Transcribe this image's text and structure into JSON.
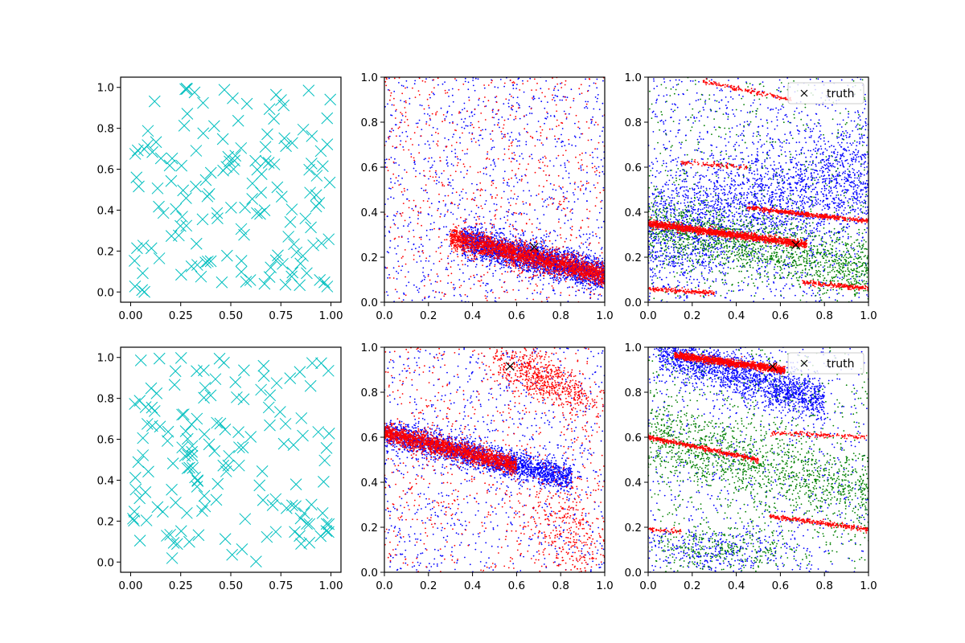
{
  "figure": {
    "layout": "2 rows x 3 columns of scatter panels",
    "background": "#ffffff"
  },
  "chart_data": [
    {
      "panel": "row1-col1",
      "type": "scatter",
      "xlim": [
        -0.05,
        1.05
      ],
      "ylim": [
        -0.05,
        1.05
      ],
      "xticks": [
        "0.00",
        "0.25",
        "0.50",
        "0.75",
        "1.00"
      ],
      "yticks": [
        "0.0",
        "0.2",
        "0.4",
        "0.6",
        "0.8",
        "1.0"
      ],
      "grid": false,
      "series": [
        {
          "color": "#00bfbf",
          "marker": "x",
          "count": 150,
          "distribution": "uniform over [0,1]x[0,1]",
          "seed": 11
        }
      ]
    },
    {
      "panel": "row1-col2",
      "type": "scatter",
      "xlim": [
        0,
        1
      ],
      "ylim": [
        0,
        1
      ],
      "xticks": [
        "0.0",
        "0.2",
        "0.4",
        "0.6",
        "0.8",
        "1.0"
      ],
      "yticks": [
        "0.0",
        "0.2",
        "0.4",
        "0.6",
        "0.8",
        "1.0"
      ],
      "grid": false,
      "series": [
        {
          "color": "#0000ff",
          "marker": ".",
          "count": 2600,
          "band": {
            "y0": 0.36,
            "slope": -0.24,
            "spread": 0.035,
            "xmin": 0.35,
            "xmax": 1.0
          },
          "background_count": 1000,
          "seed": 21
        },
        {
          "color": "#ff0000",
          "marker": ".",
          "count": 2200,
          "band": {
            "y0": 0.36,
            "slope": -0.24,
            "spread": 0.025,
            "xmin": 0.3,
            "xmax": 1.0
          },
          "background_count": 700,
          "seed": 22
        }
      ],
      "truth": {
        "x": 0.68,
        "y": 0.245,
        "color": "#000000",
        "marker": "x"
      }
    },
    {
      "panel": "row1-col3",
      "type": "scatter",
      "xlim": [
        0,
        1
      ],
      "ylim": [
        0,
        1
      ],
      "xticks": [
        "0.0",
        "0.2",
        "0.4",
        "0.6",
        "0.8",
        "1.0"
      ],
      "yticks": [
        "0.0",
        "0.2",
        "0.4",
        "0.6",
        "0.8",
        "1.0"
      ],
      "grid": false,
      "legend": {
        "position": "upper right",
        "label": "truth"
      },
      "series": [
        {
          "color": "#0000ff",
          "marker": ".",
          "count": 2300,
          "band": {
            "y0": 0.3,
            "slope": 0.25,
            "spread": 0.13,
            "xmin": 0.0,
            "xmax": 1.0
          },
          "background_count": 1000,
          "seed": 31
        },
        {
          "color": "#008000",
          "marker": ".",
          "count": 1400,
          "band": {
            "y0": 0.34,
            "slope": -0.2,
            "spread": 0.07,
            "xmin": 0.0,
            "xmax": 1.0
          },
          "background_count": 500,
          "seed": 32
        },
        {
          "color": "#ff0000",
          "marker": ".",
          "count": 1600,
          "band": {
            "y0": 0.35,
            "slope": -0.13,
            "spread": 0.008,
            "xmin": 0.0,
            "xmax": 0.72
          },
          "background_count": 0,
          "seed": 33
        }
      ],
      "red_lines": [
        {
          "x0": 0.45,
          "y0": 0.42,
          "x1": 1.0,
          "y1": 0.36,
          "n": 500
        },
        {
          "x0": 0.0,
          "y0": 0.06,
          "x1": 0.3,
          "y1": 0.04,
          "n": 180
        },
        {
          "x0": 0.7,
          "y0": 0.09,
          "x1": 1.0,
          "y1": 0.06,
          "n": 220
        },
        {
          "x0": 0.25,
          "y0": 0.98,
          "x1": 0.65,
          "y1": 0.9,
          "n": 160
        },
        {
          "x0": 0.15,
          "y0": 0.62,
          "x1": 0.45,
          "y1": 0.6,
          "n": 100
        }
      ],
      "truth": {
        "x": 0.67,
        "y": 0.255,
        "color": "#000000",
        "marker": "x"
      }
    },
    {
      "panel": "row2-col1",
      "type": "scatter",
      "xlim": [
        -0.05,
        1.05
      ],
      "ylim": [
        -0.05,
        1.05
      ],
      "xticks": [
        "0.00",
        "0.25",
        "0.50",
        "0.75",
        "1.00"
      ],
      "yticks": [
        "0.0",
        "0.2",
        "0.4",
        "0.6",
        "0.8",
        "1.0"
      ],
      "grid": false,
      "series": [
        {
          "color": "#00bfbf",
          "marker": "x",
          "count": 150,
          "distribution": "uniform over [0,1]x[0,1]",
          "seed": 41
        }
      ]
    },
    {
      "panel": "row2-col2",
      "type": "scatter",
      "xlim": [
        0,
        1
      ],
      "ylim": [
        0,
        1
      ],
      "xticks": [
        "0.0",
        "0.2",
        "0.4",
        "0.6",
        "0.8",
        "1.0"
      ],
      "yticks": [
        "0.0",
        "0.2",
        "0.4",
        "0.6",
        "0.8",
        "1.0"
      ],
      "grid": false,
      "series": [
        {
          "color": "#0000ff",
          "marker": ".",
          "count": 2400,
          "band": {
            "y0": 0.62,
            "slope": -0.24,
            "spread": 0.03,
            "xmin": 0.0,
            "xmax": 0.85
          },
          "background_count": 900,
          "seed": 51
        },
        {
          "color": "#ff0000",
          "marker": ".",
          "count": 1900,
          "band": {
            "y0": 0.62,
            "slope": -0.24,
            "spread": 0.02,
            "xmin": 0.0,
            "xmax": 0.6
          },
          "background_count": 700,
          "seed": 52
        }
      ],
      "red_clusters": [
        {
          "cx": 0.72,
          "cy": 0.86,
          "sx": 0.12,
          "sy": 0.05,
          "n": 650
        },
        {
          "cx": 0.85,
          "cy": 0.17,
          "sx": 0.1,
          "sy": 0.1,
          "n": 300
        }
      ],
      "truth": {
        "x": 0.57,
        "y": 0.915,
        "color": "#000000",
        "marker": "x"
      }
    },
    {
      "panel": "row2-col3",
      "type": "scatter",
      "xlim": [
        0,
        1
      ],
      "ylim": [
        0,
        1
      ],
      "xticks": [
        "0.0",
        "0.2",
        "0.4",
        "0.6",
        "0.8",
        "1.0"
      ],
      "yticks": [
        "0.0",
        "0.2",
        "0.4",
        "0.6",
        "0.8",
        "1.0"
      ],
      "grid": false,
      "legend": {
        "position": "upper right",
        "label": "truth"
      },
      "series": [
        {
          "color": "#0000ff",
          "marker": ".",
          "count": 1800,
          "band": {
            "y0": 1.0,
            "slope": -0.3,
            "spread": 0.05,
            "xmin": 0.05,
            "xmax": 0.8
          },
          "background_count": 700,
          "seed": 61
        },
        {
          "color": "#008000",
          "marker": ".",
          "count": 1200,
          "band": {
            "y0": 0.6,
            "slope": -0.25,
            "spread": 0.08,
            "xmin": 0.0,
            "xmax": 1.0
          },
          "background_count": 600,
          "seed": 62
        },
        {
          "color": "#ff0000",
          "marker": ".",
          "count": 1300,
          "band": {
            "y0": 0.98,
            "slope": -0.13,
            "spread": 0.008,
            "xmin": 0.12,
            "xmax": 0.62
          },
          "background_count": 0,
          "seed": 63
        }
      ],
      "red_lines": [
        {
          "x0": 0.0,
          "y0": 0.6,
          "x1": 0.5,
          "y1": 0.5,
          "n": 450
        },
        {
          "x0": 0.55,
          "y0": 0.62,
          "x1": 1.0,
          "y1": 0.6,
          "n": 150
        },
        {
          "x0": 0.55,
          "y0": 0.25,
          "x1": 1.0,
          "y1": 0.19,
          "n": 300
        },
        {
          "x0": 0.0,
          "y0": 0.19,
          "x1": 0.15,
          "y1": 0.18,
          "n": 60
        }
      ],
      "blue_green_cluster": {
        "cx": 0.3,
        "cy": 0.1,
        "sx": 0.2,
        "sy": 0.05,
        "n": 600
      },
      "truth": {
        "x": 0.565,
        "y": 0.915,
        "color": "#000000",
        "marker": "x"
      }
    }
  ]
}
